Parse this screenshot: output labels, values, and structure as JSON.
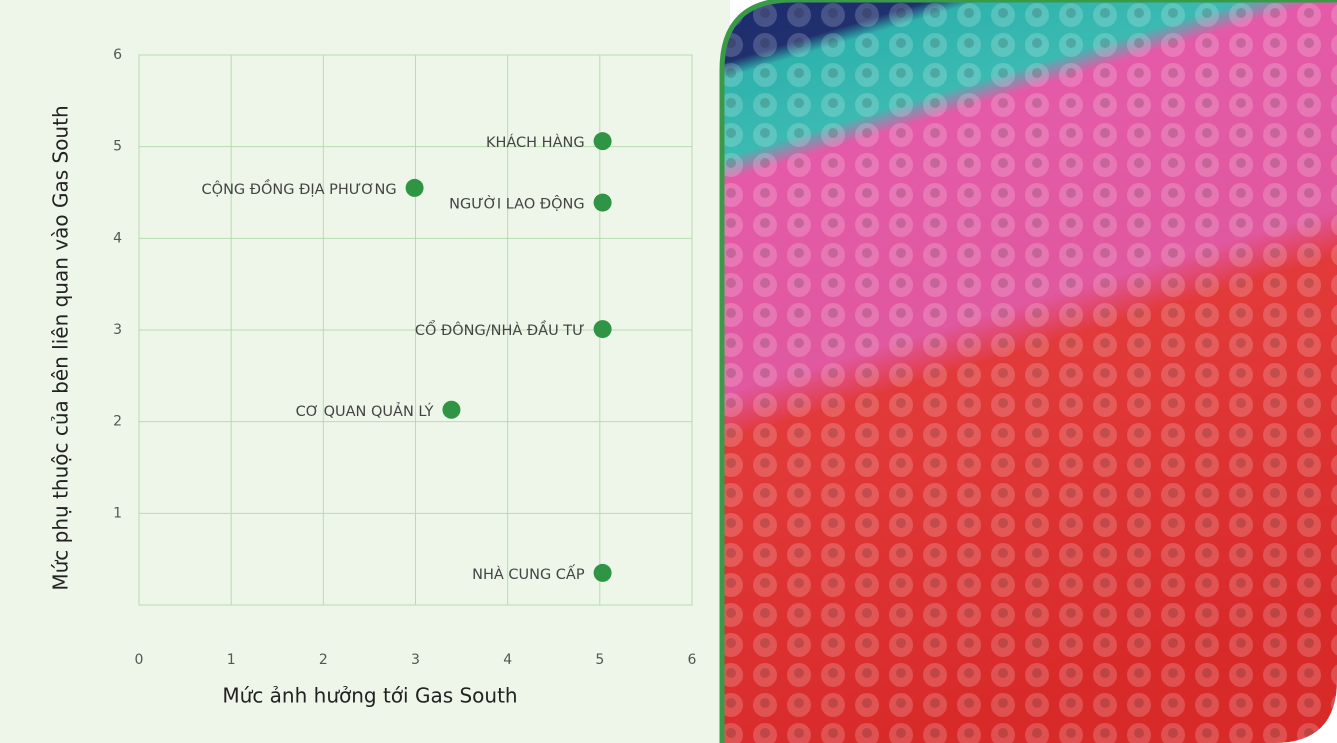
{
  "chart_data": {
    "type": "scatter",
    "xlabel": "Mức ảnh hưởng tới Gas South",
    "ylabel": "Mức phụ thuộc của bên liên quan vào Gas South",
    "labels": [
      "KHÁCH HÀNG",
      "CỘNG ĐỒNG ĐỊA  PHƯƠNG",
      "NGƯỜI LAO ĐỘNG",
      "CỔ ĐÔNG/NHÀ ĐẦU TƯ",
      "CƠ QUAN QUẢN LÝ",
      "NHÀ CUNG CẤP"
    ],
    "x": [
      5.03,
      2.99,
      5.03,
      5.03,
      3.39,
      5.03
    ],
    "values": [
      5.06,
      4.55,
      4.39,
      3.01,
      2.13,
      0.35
    ],
    "color": "#2f9444",
    "xlim": [
      0,
      6
    ],
    "ylim": [
      0,
      6
    ],
    "xticks": [
      0,
      1,
      2,
      3,
      4,
      5,
      6
    ],
    "yticks": [
      1,
      2,
      3,
      4,
      5,
      6
    ],
    "grid": true
  }
}
